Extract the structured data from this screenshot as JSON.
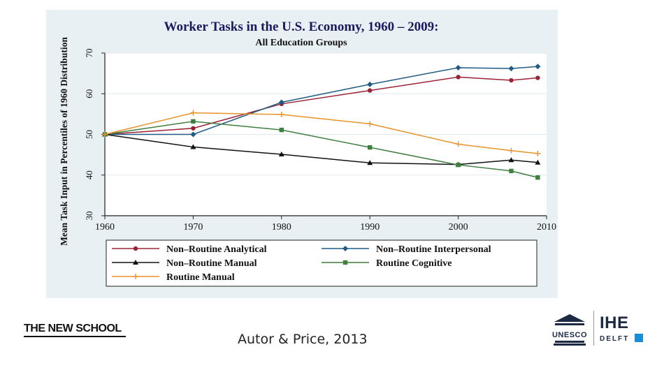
{
  "chart_data": {
    "type": "line",
    "title": "Worker Tasks in the U.S. Economy, 1960 – 2009:",
    "subtitle": "All Education Groups",
    "ylabel": "Mean Task Input in Percentiles of 1960 Distribution",
    "xlabel": "",
    "xlim": [
      1960,
      2010
    ],
    "ylim": [
      30,
      70
    ],
    "x_ticks": [
      "1960",
      "1970",
      "1980",
      "1990",
      "2000",
      "2010"
    ],
    "y_ticks": [
      "30",
      "40",
      "50",
      "60",
      "70"
    ],
    "grid": true,
    "legend_position": "bottom",
    "series": [
      {
        "name": "Non–Routine Analytical",
        "color": "#9b2335",
        "marker": "circle",
        "x": [
          1960,
          1970,
          1980,
          1990,
          2000,
          2006,
          2009
        ],
        "y": [
          50,
          51.5,
          57.5,
          60.8,
          64.1,
          63.3,
          63.9
        ]
      },
      {
        "name": "Non–Routine Interpersonal",
        "color": "#1f5b85",
        "marker": "diamond",
        "x": [
          1960,
          1970,
          1980,
          1990,
          2000,
          2006,
          2009
        ],
        "y": [
          50,
          50,
          57.9,
          62.3,
          66.4,
          66.2,
          66.7
        ]
      },
      {
        "name": "Non–Routine Manual",
        "color": "#111111",
        "marker": "triangle",
        "x": [
          1960,
          1970,
          1980,
          1990,
          2000,
          2006,
          2009
        ],
        "y": [
          50,
          46.9,
          45.1,
          43.0,
          42.6,
          43.7,
          43.1
        ]
      },
      {
        "name": "Routine Cognitive",
        "color": "#3f7f3f",
        "marker": "square",
        "x": [
          1960,
          1970,
          1980,
          1990,
          2000,
          2006,
          2009
        ],
        "y": [
          50,
          53.2,
          51.1,
          46.8,
          42.5,
          41.0,
          39.4
        ]
      },
      {
        "name": "Routine Manual",
        "color": "#e8932a",
        "marker": "plus",
        "x": [
          1960,
          1970,
          1980,
          1990,
          2000,
          2006,
          2009
        ],
        "y": [
          50,
          55.3,
          54.9,
          52.6,
          47.6,
          46.0,
          45.3
        ]
      }
    ]
  },
  "citation": "Autor & Price, 2013",
  "logos": {
    "new_school": "THE NEW SCHOOL",
    "unesco": "UNESCO",
    "ihe_main": "IHE",
    "ihe_sub": "DELFT",
    "ihe_accent": "#1a8cd8"
  }
}
